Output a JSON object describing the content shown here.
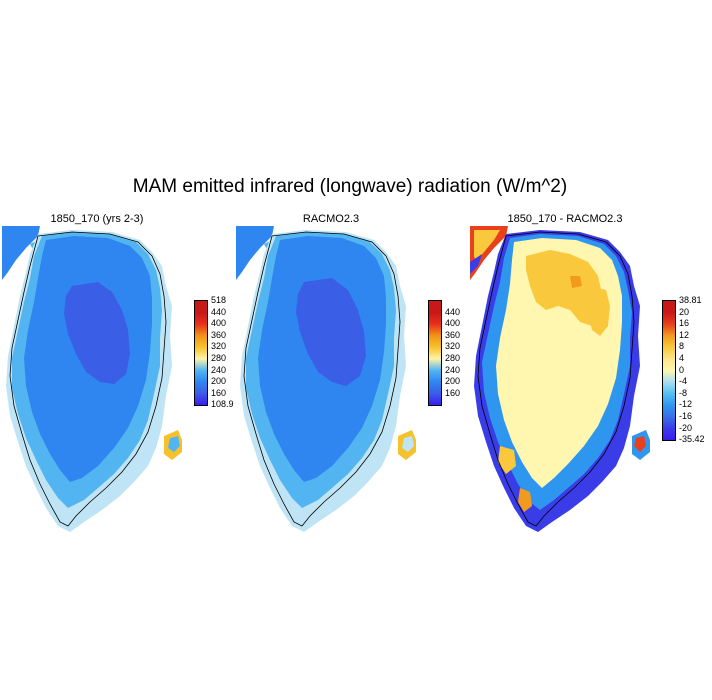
{
  "figure": {
    "title": "MAM emitted infrared (longwave) radiation (W/m^2)"
  },
  "panels": [
    {
      "title": "1850_170 (yrs 2-3)",
      "colors": [
        "#3a1cf0",
        "#3a5ee6",
        "#2f86f0",
        "#52b5f2",
        "#bfe4f5",
        "#fff3a8",
        "#f6c22c",
        "#f09418",
        "#e8301c",
        "#c81818"
      ],
      "labels": [
        "108.9",
        "160",
        "200",
        "240",
        "280",
        "320",
        "360",
        "400",
        "440",
        "518"
      ]
    },
    {
      "title": "RACMO2.3",
      "colors": [
        "#3a1cf0",
        "#3a5ee6",
        "#2f86f0",
        "#52b5f2",
        "#bfe4f5",
        "#fff3a8",
        "#f6c22c",
        "#f09418",
        "#e8301c",
        "#c81818"
      ],
      "labels": [
        "160",
        "200",
        "240",
        "280",
        "320",
        "360",
        "400",
        "440"
      ]
    },
    {
      "title": "1850_170 - RACMO2.3",
      "colors": [
        "#3a1cf0",
        "#3a3ce8",
        "#3a6ee6",
        "#2f96f0",
        "#52bff2",
        "#a8dff2",
        "#fff6b0",
        "#fde68a",
        "#f9c83c",
        "#f29a1e",
        "#e8401c",
        "#c81818"
      ],
      "labels": [
        "-35.42",
        "-20",
        "-16",
        "-12",
        "-8",
        "-4",
        "0",
        "4",
        "8",
        "12",
        "16",
        "20",
        "38.81"
      ]
    }
  ]
}
